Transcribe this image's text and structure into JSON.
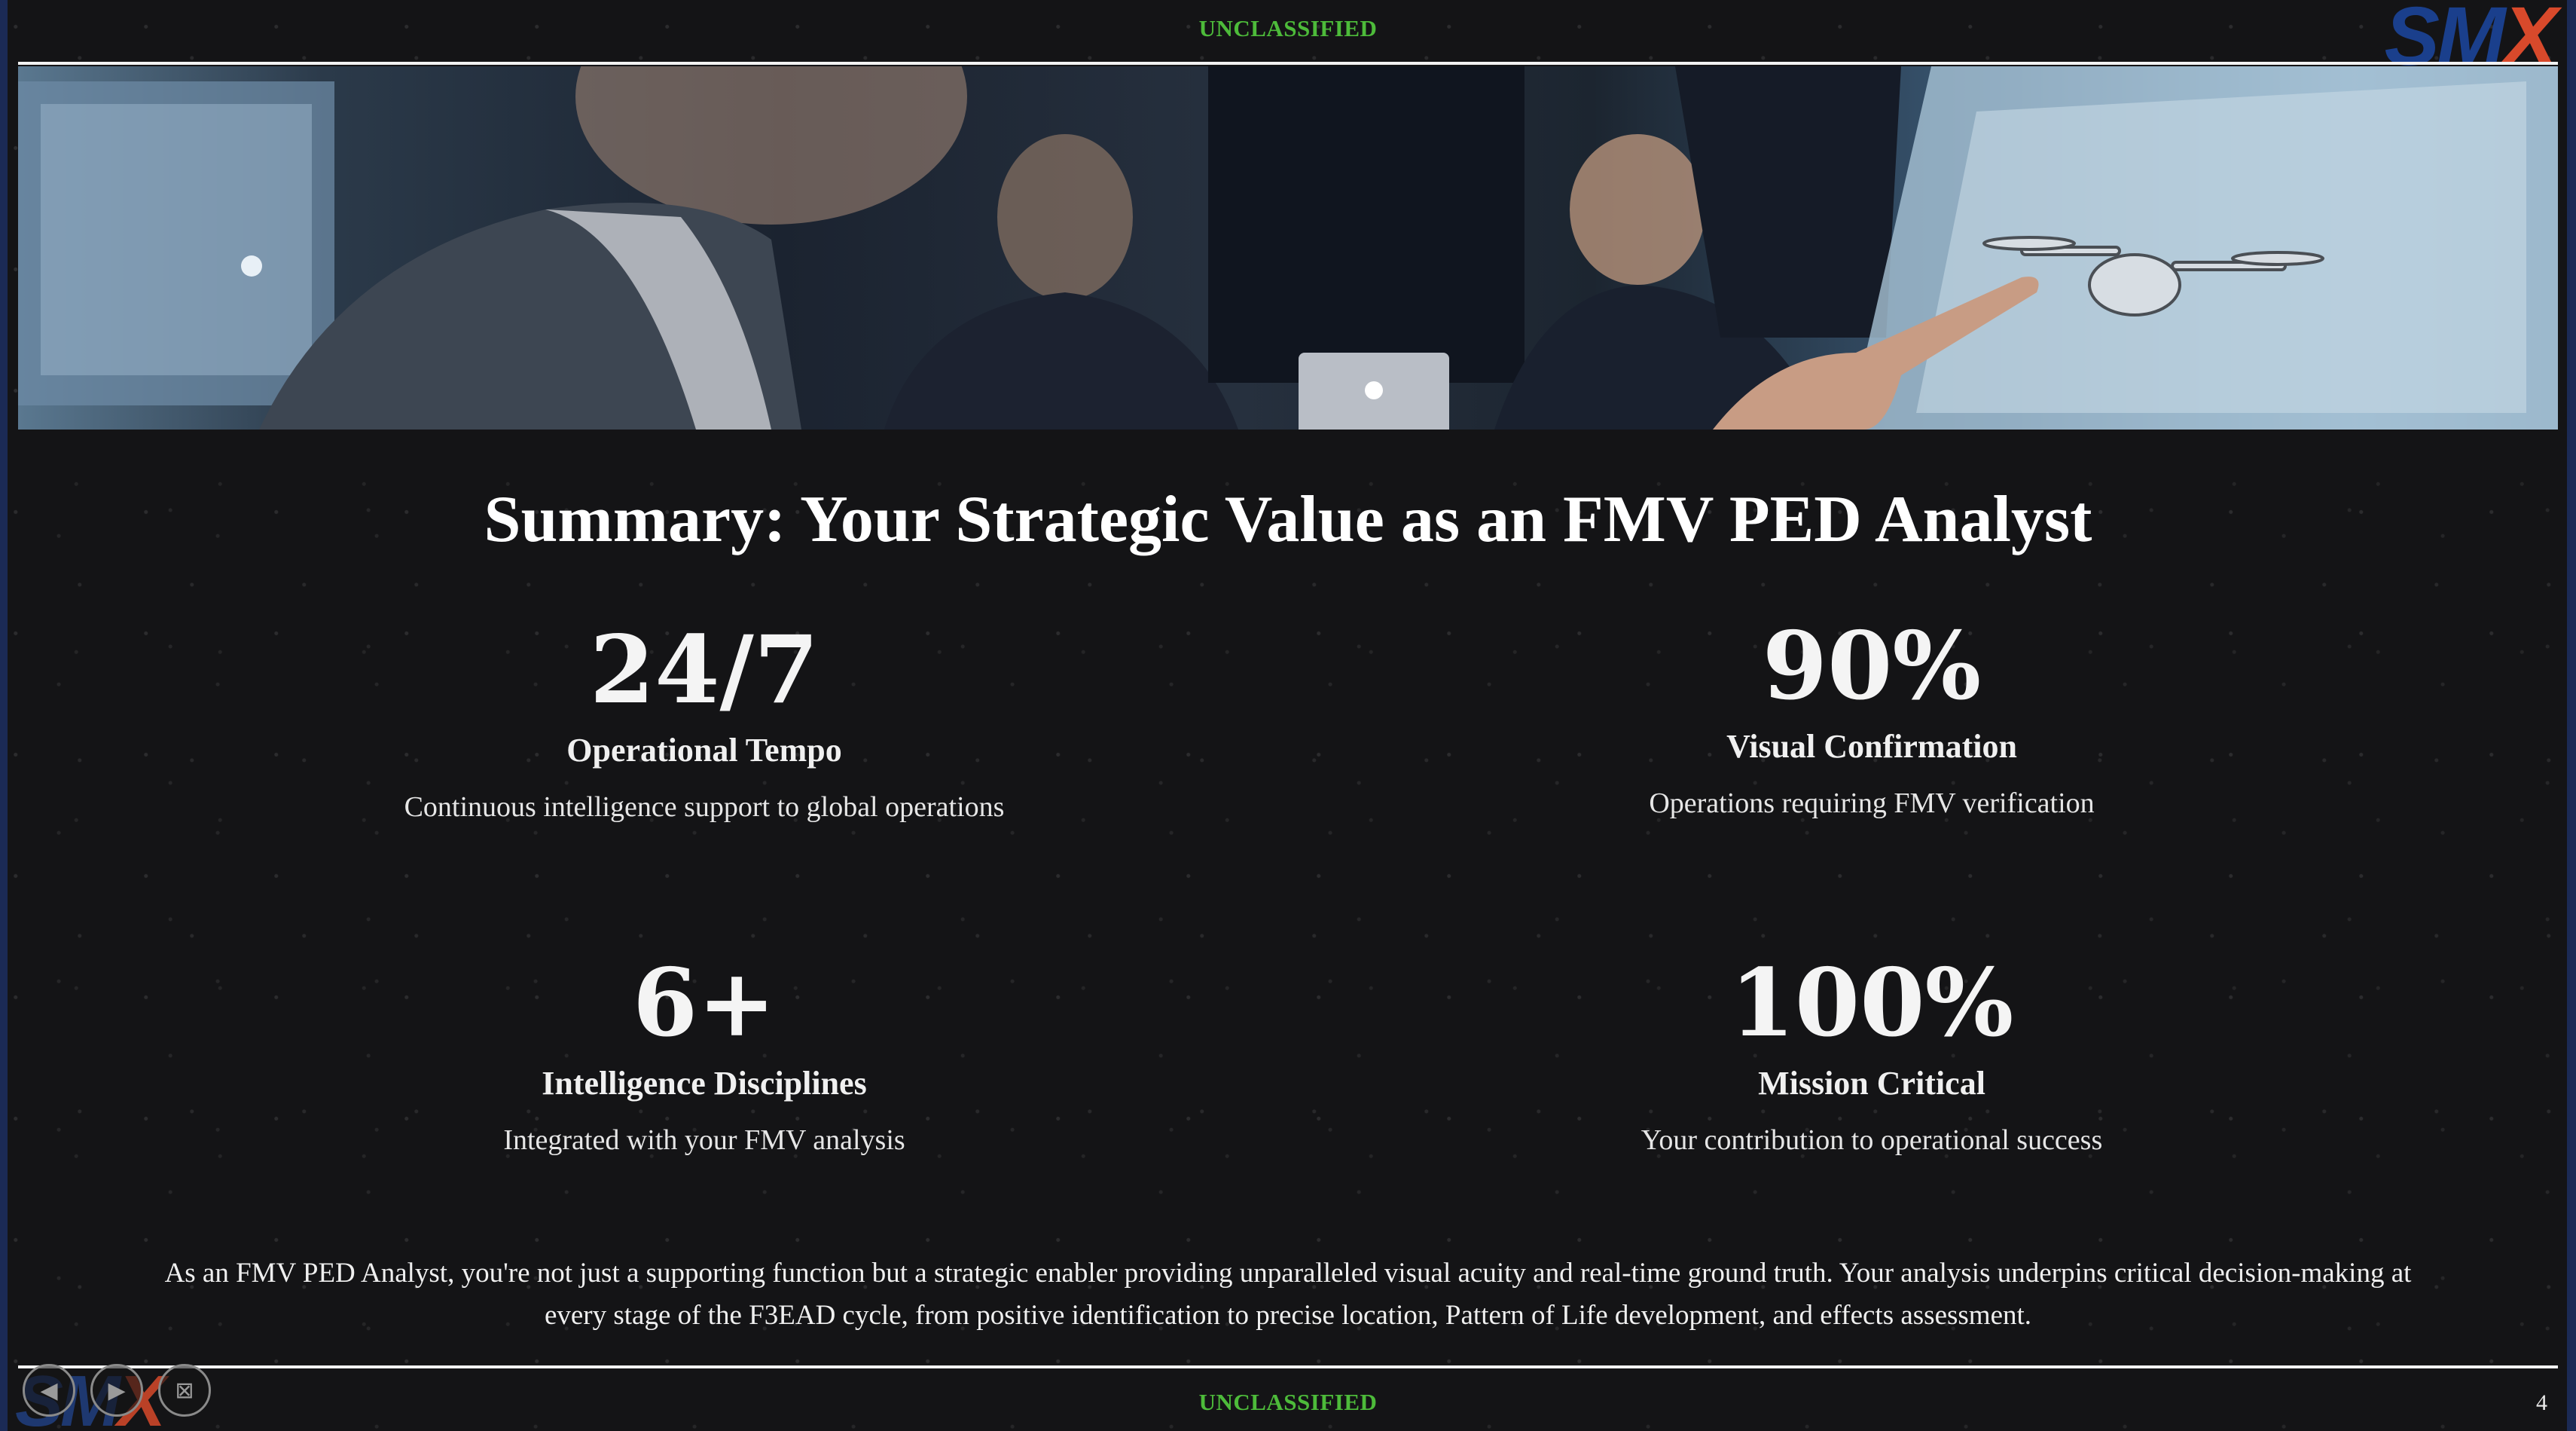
{
  "header": {
    "classification": "UNCLASSIFIED",
    "logo_main": "SM",
    "logo_x": "X"
  },
  "slide": {
    "title": "Summary: Your Strategic Value as an FMV PED Analyst",
    "stats": [
      {
        "value": "24/7",
        "label": "Operational Tempo",
        "description": "Continuous intelligence support to global operations"
      },
      {
        "value": "90%",
        "label": "Visual Confirmation",
        "description": "Operations requiring FMV verification"
      },
      {
        "value": "6+",
        "label": "Intelligence Disciplines",
        "description": "Integrated with your FMV analysis"
      },
      {
        "value": "100%",
        "label": "Mission Critical",
        "description": "Your contribution to operational success"
      }
    ],
    "summary": "As an FMV PED Analyst, you're not just a supporting function but a strategic enabler providing unparalleled visual acuity and real-time ground truth. Your analysis underpins critical decision-making at every stage of the F3EAD cycle, from positive identification to precise location, Pattern of Life development, and effects assessment."
  },
  "footer": {
    "classification": "UNCLASSIFIED",
    "page_number": "4",
    "logo_main": "SM",
    "logo_x": "X",
    "controls": {
      "prev_icon": "chevron-left-icon",
      "next_icon": "chevron-right-icon",
      "exit_icon": "exit-icon"
    }
  },
  "colors": {
    "classification": "#4dbb3a",
    "logo_blue": "#1a3f8c",
    "logo_accent": "#d8492b",
    "background": "#141416"
  }
}
